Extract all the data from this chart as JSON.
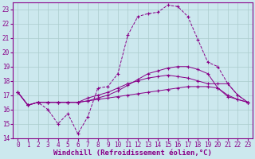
{
  "background_color": "#cce8ee",
  "grid_color": "#aacccc",
  "line_color": "#880088",
  "xlabel": "Windchill (Refroidissement éolien,°C)",
  "xlabel_fontsize": 6.5,
  "tick_fontsize": 5.5,
  "xlim": [
    -0.5,
    23.5
  ],
  "ylim": [
    14,
    23.5
  ],
  "yticks": [
    14,
    15,
    16,
    17,
    18,
    19,
    20,
    21,
    22,
    23
  ],
  "xticks": [
    0,
    1,
    2,
    3,
    4,
    5,
    6,
    7,
    8,
    9,
    10,
    11,
    12,
    13,
    14,
    15,
    16,
    17,
    18,
    19,
    20,
    21,
    22,
    23
  ],
  "series1_x": [
    0,
    1,
    2,
    3,
    4,
    5,
    6,
    7,
    8,
    9,
    10,
    11,
    12,
    13,
    14,
    15,
    16,
    17,
    18,
    19,
    20,
    21,
    22,
    23
  ],
  "series1_y": [
    17.2,
    16.3,
    16.5,
    16.0,
    15.0,
    15.7,
    14.3,
    15.5,
    17.5,
    17.6,
    18.5,
    21.2,
    22.5,
    22.7,
    22.8,
    23.3,
    23.2,
    22.5,
    20.9,
    19.3,
    19.0,
    17.8,
    17.0,
    16.5
  ],
  "series2_x": [
    0,
    1,
    2,
    3,
    4,
    5,
    6,
    7,
    8,
    9,
    10,
    11,
    12,
    13,
    14,
    15,
    16,
    17,
    18,
    19,
    20,
    21,
    22,
    23
  ],
  "series2_y": [
    17.2,
    16.3,
    16.5,
    16.5,
    16.5,
    16.5,
    16.5,
    16.6,
    16.8,
    17.0,
    17.3,
    17.7,
    18.1,
    18.5,
    18.7,
    18.9,
    19.0,
    19.0,
    18.8,
    18.5,
    17.5,
    16.9,
    16.7,
    16.5
  ],
  "series3_x": [
    0,
    1,
    2,
    3,
    4,
    5,
    6,
    7,
    8,
    9,
    10,
    11,
    12,
    13,
    14,
    15,
    16,
    17,
    18,
    19,
    20,
    21,
    22,
    23
  ],
  "series3_y": [
    17.2,
    16.3,
    16.5,
    16.5,
    16.5,
    16.5,
    16.5,
    16.8,
    17.0,
    17.2,
    17.5,
    17.8,
    18.0,
    18.2,
    18.3,
    18.4,
    18.3,
    18.2,
    18.0,
    17.8,
    17.8,
    17.8,
    17.0,
    16.5
  ],
  "series4_x": [
    0,
    1,
    2,
    3,
    4,
    5,
    6,
    7,
    8,
    9,
    10,
    11,
    12,
    13,
    14,
    15,
    16,
    17,
    18,
    19,
    20,
    21,
    22,
    23
  ],
  "series4_y": [
    17.2,
    16.3,
    16.5,
    16.5,
    16.5,
    16.5,
    16.5,
    16.6,
    16.7,
    16.8,
    16.9,
    17.0,
    17.1,
    17.2,
    17.3,
    17.4,
    17.5,
    17.6,
    17.6,
    17.6,
    17.5,
    17.0,
    16.7,
    16.5
  ]
}
